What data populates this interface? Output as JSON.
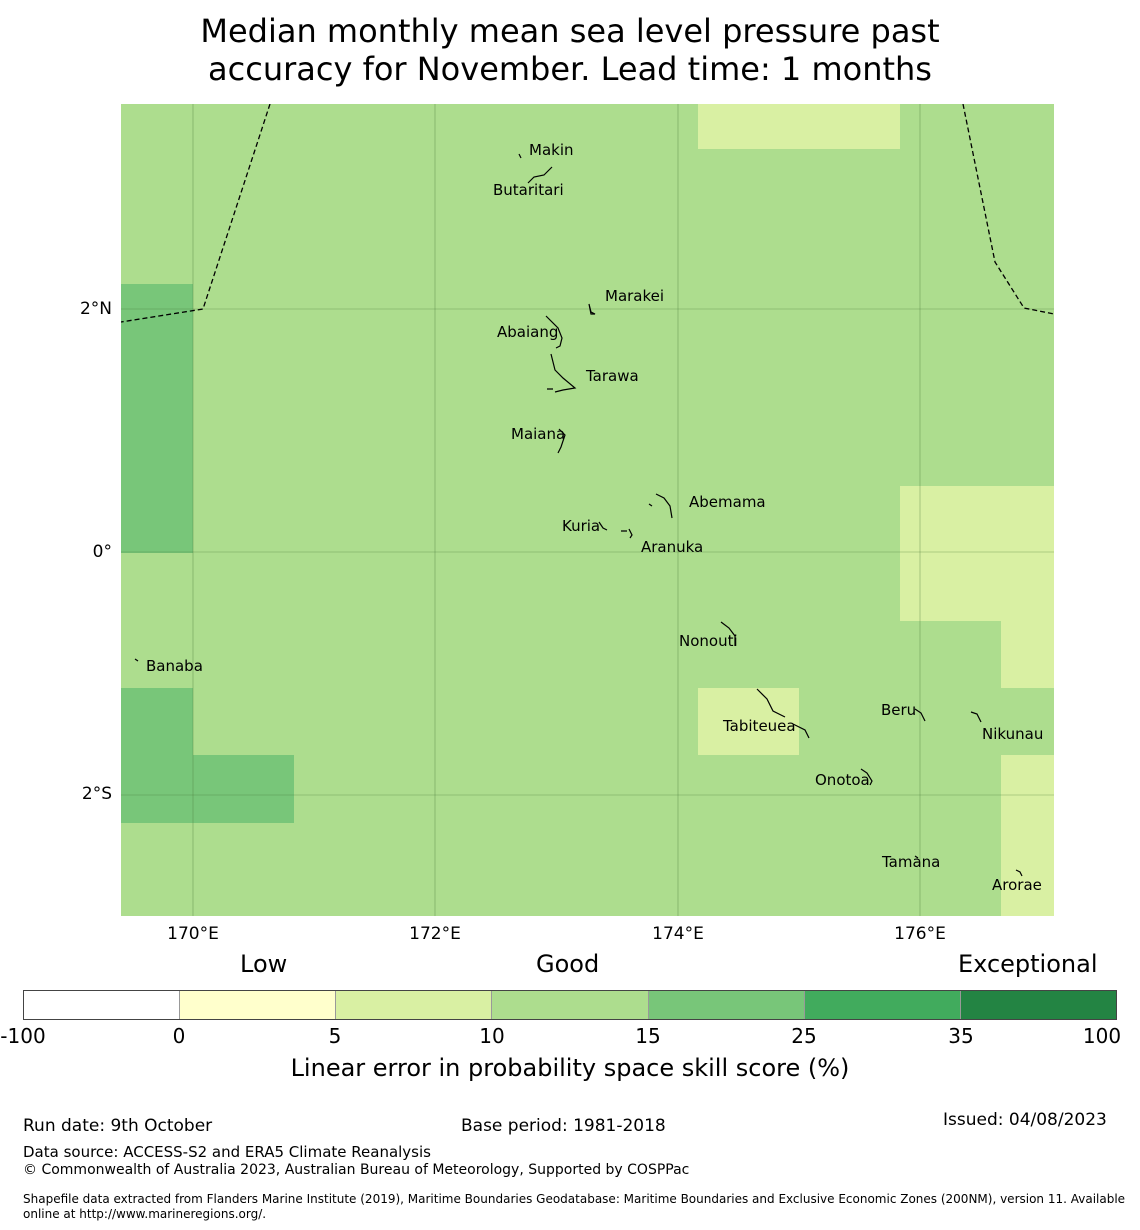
{
  "title": {
    "line1": "Median monthly mean sea level pressure past",
    "line2": "accuracy for November. Lead time: 1 months"
  },
  "axes": {
    "lat_labels": [
      "2°N",
      "0°",
      "2°S"
    ],
    "lon_labels": [
      "170°E",
      "172°E",
      "174°E",
      "176°E"
    ]
  },
  "islands": [
    {
      "name": "Makin"
    },
    {
      "name": "Butaritari"
    },
    {
      "name": "Marakei"
    },
    {
      "name": "Abaiang"
    },
    {
      "name": "Tarawa"
    },
    {
      "name": "Maiana"
    },
    {
      "name": "Abemama"
    },
    {
      "name": "Kuria"
    },
    {
      "name": "Aranuka"
    },
    {
      "name": "Nonouti"
    },
    {
      "name": "Banaba"
    },
    {
      "name": "Beru"
    },
    {
      "name": "Tabiteuea"
    },
    {
      "name": "Nikunau"
    },
    {
      "name": "Onotoa"
    },
    {
      "name": "Tamana"
    },
    {
      "name": "Arorae"
    }
  ],
  "colorbar": {
    "categories": {
      "low": "Low",
      "good": "Good",
      "exceptional": "Exceptional"
    },
    "ticks": [
      "-100",
      "0",
      "5",
      "10",
      "15",
      "25",
      "35",
      "100"
    ],
    "colors": [
      "#ffffff",
      "#ffffcc",
      "#d9f0a3",
      "#addd8e",
      "#78c679",
      "#41ab5d",
      "#238443"
    ],
    "label": "Linear error in probability space skill score (%)"
  },
  "footer": {
    "run_date": "Run date: 9th October",
    "base_period": "Base period: 1981-2018",
    "issued": "Issued: 04/08/2023",
    "data_source": "Data source: ACCESS-S2 and ERA5 Climate Reanalysis",
    "copyright": "© Commonwealth of Australia 2023, Australian Bureau of Meteorology, Supported by COSPPac",
    "shapefile": "Shapefile data extracted from Flanders Marine Institute (2019), Maritime Boundaries Geodatabase: Maritime Boundaries and Exclusive Economic Zones (200NM), version 11. Available online at http://www.marineregions.org/."
  }
}
